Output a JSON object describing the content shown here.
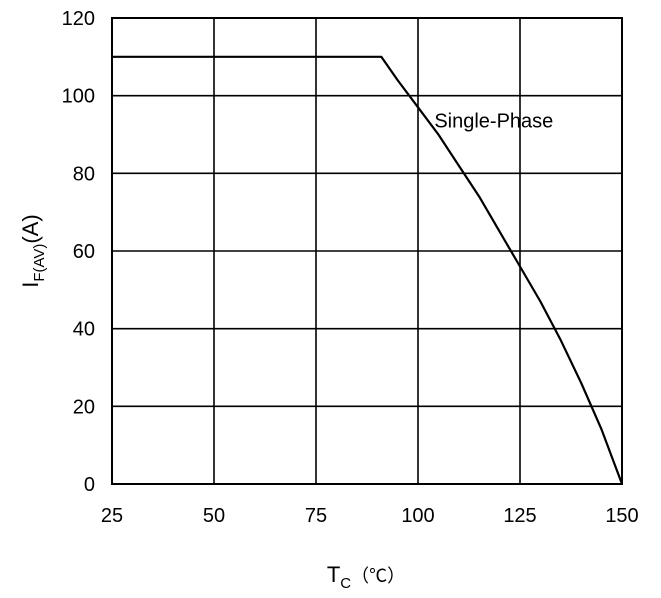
{
  "chart_data": {
    "type": "line",
    "title": "",
    "xlabel": "T",
    "xlabel_sub": "C",
    "xlabel_unit": "（℃）",
    "ylabel": "I",
    "ylabel_sub": "F(AV)",
    "ylabel_unit": "(A)",
    "xlim": [
      25,
      150
    ],
    "ylim": [
      0,
      120
    ],
    "xticks": [
      25,
      50,
      75,
      100,
      125,
      150
    ],
    "yticks": [
      0,
      20,
      40,
      60,
      80,
      100,
      120
    ],
    "grid": true,
    "series": [
      {
        "name": "Single-Phase",
        "x": [
          25,
          91,
          95,
          100,
          105,
          110,
          115,
          120,
          125,
          130,
          135,
          140,
          145,
          150
        ],
        "y": [
          110,
          110,
          104,
          97,
          90,
          82,
          74,
          65,
          56,
          47,
          37,
          26,
          14,
          0
        ]
      }
    ],
    "annotations": [
      {
        "text": "Single-Phase",
        "x": 104,
        "y": 97
      }
    ]
  }
}
